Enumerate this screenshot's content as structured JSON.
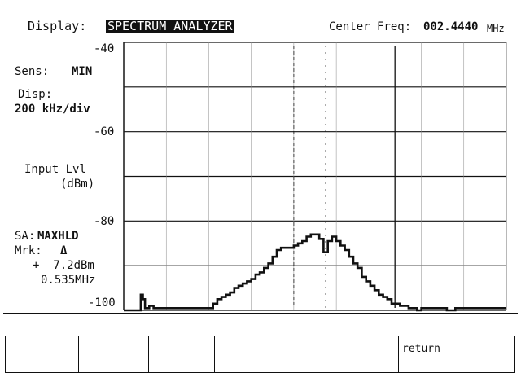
{
  "header": {
    "display_label": "Display:",
    "display_mode": "SPECTRUM ANALYZER",
    "center_freq_label": "Center Freq:",
    "center_freq_value": "002.4440",
    "center_freq_unit": "MHz"
  },
  "left_panel": {
    "sens_label": "Sens:",
    "sens_value": "MIN",
    "disp_label": "Disp:",
    "disp_value": "200 kHz/div",
    "input_lvl_line1": "Input Lvl",
    "input_lvl_line2": "(dBm)",
    "sa_label": "SA:",
    "sa_value": "MAXHLD",
    "mrk_label": "Mrk:",
    "mrk_symbol": "Δ",
    "mrk_level": "+  7.2dBm",
    "mrk_freq": "0.535MHz"
  },
  "chart_data": {
    "type": "line",
    "ylim": [
      -100,
      -40
    ],
    "y_tick_labels": [
      "-40",
      "-60",
      "-80",
      "-100"
    ],
    "x_divisions": 9,
    "grid": true,
    "span_label": "200 kHz/div",
    "series": [
      {
        "x": [
          0,
          0.1,
          0.2,
          0.3,
          0.4,
          0.45,
          0.5,
          0.6,
          0.7,
          0.8,
          0.9,
          1.0,
          1.1,
          1.2,
          1.3,
          1.4,
          1.5,
          1.6,
          1.7,
          1.8,
          1.9,
          2.0,
          2.1,
          2.2,
          2.3,
          2.4,
          2.5,
          2.6,
          2.7,
          2.8,
          2.9,
          3.0,
          3.1,
          3.2,
          3.3,
          3.4,
          3.5,
          3.6,
          3.7,
          3.8,
          3.9,
          4.0,
          4.1,
          4.2,
          4.3,
          4.4,
          4.5,
          4.6,
          4.7,
          4.8,
          4.9,
          5.0,
          5.1,
          5.2,
          5.3,
          5.4,
          5.5,
          5.6,
          5.7,
          5.8,
          5.9,
          6.0,
          6.1,
          6.2,
          6.3,
          6.4,
          6.5,
          6.6,
          6.7,
          6.8,
          6.9,
          7.0,
          7.2,
          7.4,
          7.6,
          7.8,
          8.0,
          8.2,
          8.4,
          8.6,
          8.8,
          9.0
        ],
        "values": [
          -100,
          -100,
          -100,
          -100,
          -96.5,
          -97.5,
          -99.5,
          -99,
          -99.5,
          -99.5,
          -99.5,
          -99.5,
          -99.5,
          -99.5,
          -99.5,
          -99.5,
          -99.5,
          -99.5,
          -99.5,
          -99.5,
          -99.5,
          -99.5,
          -98.5,
          -97.5,
          -97,
          -96.5,
          -96,
          -95,
          -94.5,
          -94,
          -93.5,
          -93,
          -92,
          -91.5,
          -90.5,
          -89.5,
          -88,
          -86.5,
          -86,
          -86,
          -86,
          -85.5,
          -85,
          -84.5,
          -83.5,
          -83,
          -83,
          -84,
          -87,
          -84.5,
          -83.5,
          -84.5,
          -85.5,
          -86.5,
          -88,
          -89.5,
          -90.5,
          -92.5,
          -93.5,
          -94.5,
          -95.5,
          -96.5,
          -97,
          -97.5,
          -98.5,
          -98.5,
          -99,
          -99,
          -99.5,
          -99.5,
          -100,
          -99.5,
          -99.5,
          -99.5,
          -100,
          -99.5,
          -99.5,
          -99.5,
          -99.5,
          -99.5,
          -99.5,
          -99.5
        ]
      }
    ],
    "markers_x_div": [
      4.0,
      4.75,
      6.38
    ]
  },
  "softkeys": [
    "",
    "",
    "",
    "",
    "",
    "",
    "return",
    ""
  ]
}
